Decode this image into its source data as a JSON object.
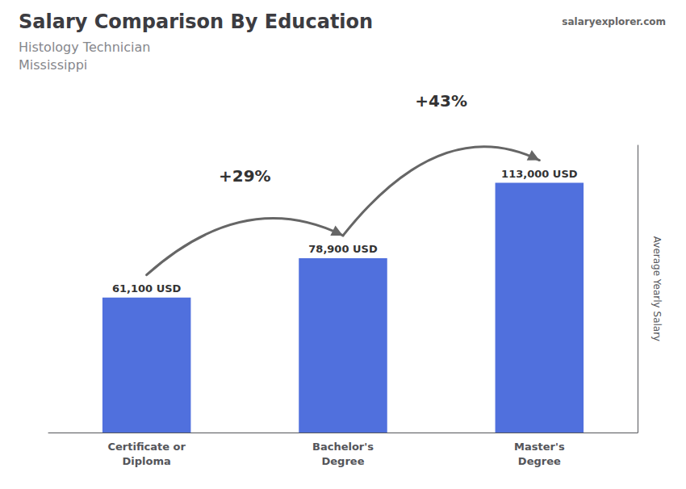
{
  "chart_data": {
    "type": "bar",
    "title": "Salary Comparison By Education",
    "subtitle": [
      "Histology Technician",
      "Mississippi"
    ],
    "source": "salaryexplorer.com",
    "ylabel": "Average Yearly Salary",
    "categories": [
      "Certificate or\nDiploma",
      "Bachelor's\nDegree",
      "Master's\nDegree"
    ],
    "values": [
      61100,
      78900,
      113000
    ],
    "value_labels": [
      "61,100 USD",
      "78,900 USD",
      "113,000 USD"
    ],
    "data_labels": true,
    "annotations": [
      "+29%",
      "+43%"
    ],
    "ylim": [
      0,
      130000
    ],
    "grid": false,
    "tick_labels": "x"
  }
}
